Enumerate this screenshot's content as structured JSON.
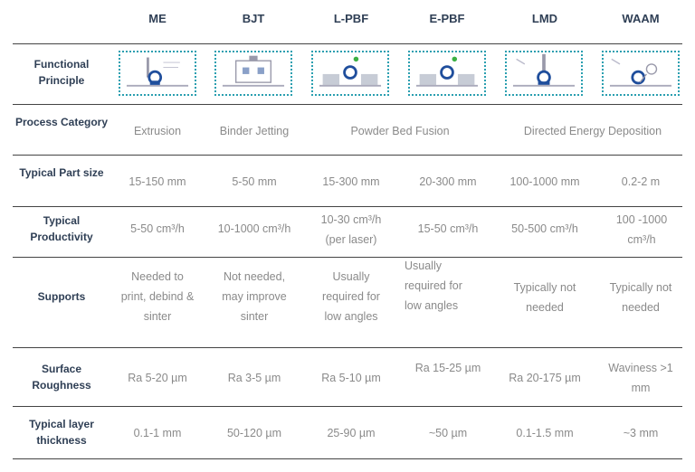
{
  "columns": [
    "ME",
    "BJT",
    "L-PBF",
    "E-PBF",
    "LMD",
    "WAAM"
  ],
  "rows": {
    "functional_principle": {
      "label": "Functional Principle"
    },
    "process_category": {
      "label": "Process Category",
      "extrusion": "Extrusion",
      "binder_jetting": "Binder Jetting",
      "powder_bed_fusion": "Powder Bed Fusion",
      "directed_energy_deposition": "Directed Energy Deposition"
    },
    "part_size": {
      "label": "Typical Part size",
      "values": [
        "15-150 mm",
        "5-50 mm",
        "15-300 mm",
        "20-300 mm",
        "100-1000 mm",
        "0.2-2 m"
      ]
    },
    "productivity": {
      "label": "Typical Productivity",
      "values": [
        "5-50 cm³/h",
        "10-1000 cm³/h",
        "10-30 cm³/h (per laser)",
        "15-50 cm³/h",
        "50-500 cm³/h",
        "100 -1000 cm³/h"
      ]
    },
    "supports": {
      "label": "Supports",
      "values": [
        "Needed to print, debind & sinter",
        "Not needed, may improve sinter",
        "Usually required for low angles",
        "Usually required for low angles",
        "Typically not needed",
        "Typically not needed"
      ]
    },
    "roughness": {
      "label": "Surface Roughness",
      "values": [
        "Ra 5-20 µm",
        "Ra 3-5 µm",
        "Ra 5-10 µm",
        "Ra 15-25 µm",
        "Ra 20-175 µm",
        "Waviness >1 mm"
      ]
    },
    "layer": {
      "label": "Typical layer thickness",
      "values": [
        "0.1-1 mm",
        "50-120 µm",
        "25-90 µm",
        "~50 µm",
        "0.1-1.5 mm",
        "~3 mm"
      ]
    }
  },
  "colors": {
    "accent": "#2a9fb0",
    "robot": "#1f4e9c",
    "header": "#2f3f55",
    "value": "#8a8a8a"
  }
}
